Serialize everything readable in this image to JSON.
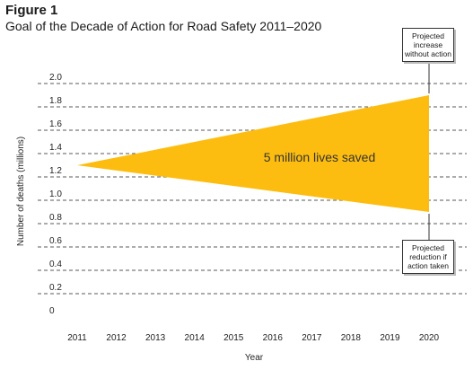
{
  "figure": {
    "label": "Figure 1",
    "title": "Goal of the Decade of Action for Road Safety 2011–2020"
  },
  "callouts": {
    "increase": "Projected increase without action",
    "reduction": "Projected reduction if action taken"
  },
  "chart_data": {
    "type": "area",
    "xlabel": "Year",
    "ylabel": "Number of deaths (millions)",
    "x": [
      "2011",
      "2012",
      "2013",
      "2014",
      "2015",
      "2016",
      "2017",
      "2018",
      "2019",
      "2020"
    ],
    "ylim": [
      0,
      2.0
    ],
    "yticks": [
      "0",
      "0.2",
      "0.4",
      "0.6",
      "0.8",
      "1.0",
      "1.2",
      "1.4",
      "1.6",
      "1.8",
      "2.0"
    ],
    "grid": "horizontal-dashed",
    "band": {
      "start": {
        "x": "2011",
        "y": 1.3
      },
      "upper_end": {
        "x": "2020",
        "y": 1.9
      },
      "lower_end": {
        "x": "2020",
        "y": 0.9
      },
      "color": "#fdbd10"
    },
    "annotation": "5 million lives saved"
  }
}
